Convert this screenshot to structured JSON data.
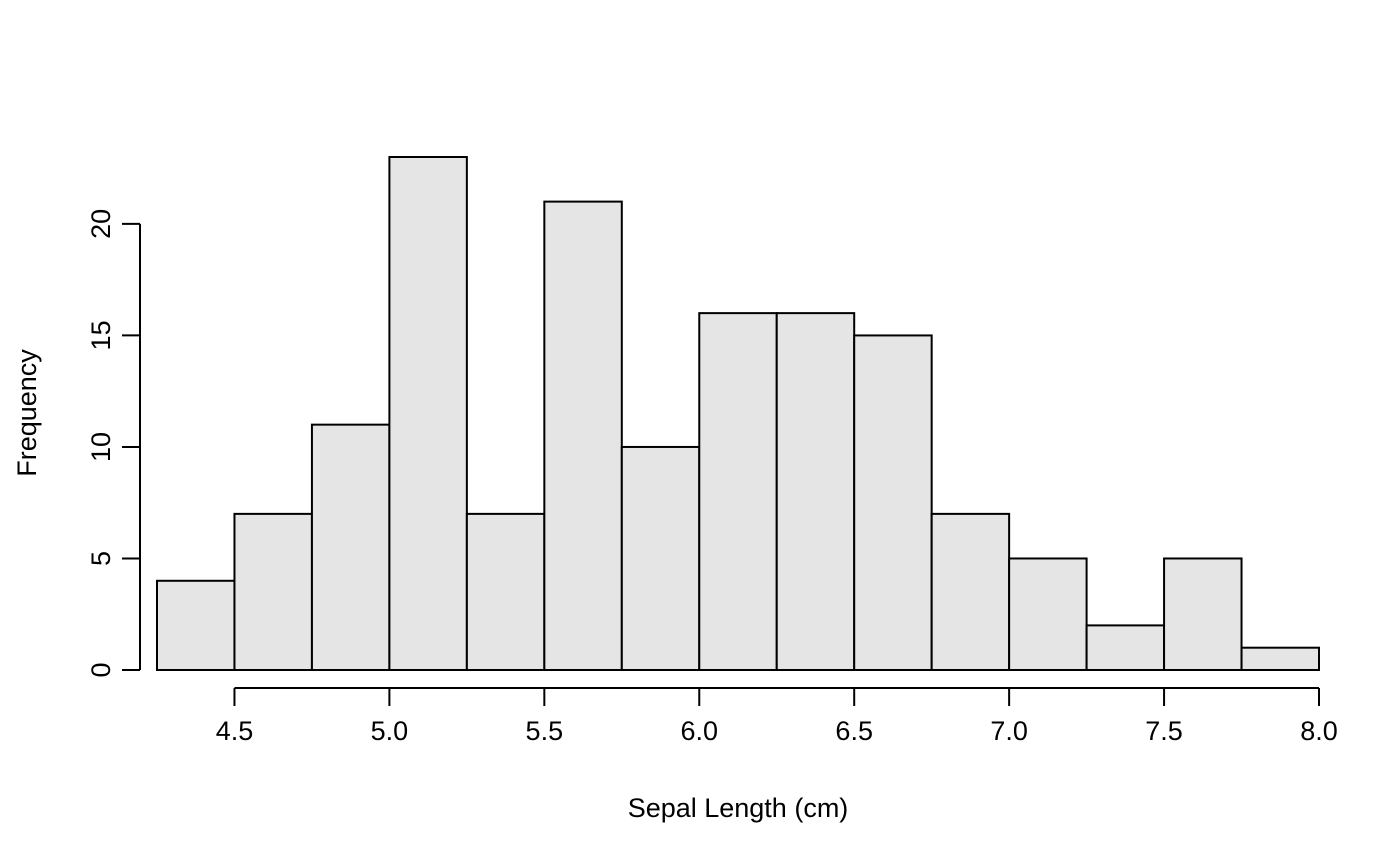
{
  "chart_data": {
    "type": "bar",
    "title": "",
    "xlabel": "Sepal Length (cm)",
    "ylabel": "Frequency",
    "bin_edges": [
      4.25,
      4.5,
      4.75,
      5.0,
      5.25,
      5.5,
      5.75,
      6.0,
      6.25,
      6.5,
      6.75,
      7.0,
      7.25,
      7.5,
      7.75,
      8.0
    ],
    "values": [
      4,
      7,
      11,
      23,
      7,
      21,
      10,
      16,
      16,
      15,
      7,
      5,
      2,
      5,
      1
    ],
    "xlim": [
      4.25,
      8.0
    ],
    "ylim": [
      0,
      23
    ],
    "x_ticks": [
      4.5,
      5.0,
      5.5,
      6.0,
      6.5,
      7.0,
      7.5,
      8.0
    ],
    "x_tick_labels": [
      "4.5",
      "5.0",
      "5.5",
      "6.0",
      "6.5",
      "7.0",
      "7.5",
      "8.0"
    ],
    "y_ticks": [
      0,
      5,
      10,
      15,
      20
    ],
    "y_tick_labels": [
      "0",
      "5",
      "10",
      "15",
      "20"
    ],
    "grid": false,
    "bar_fill": "#e5e5e5",
    "bar_stroke": "#000000"
  }
}
